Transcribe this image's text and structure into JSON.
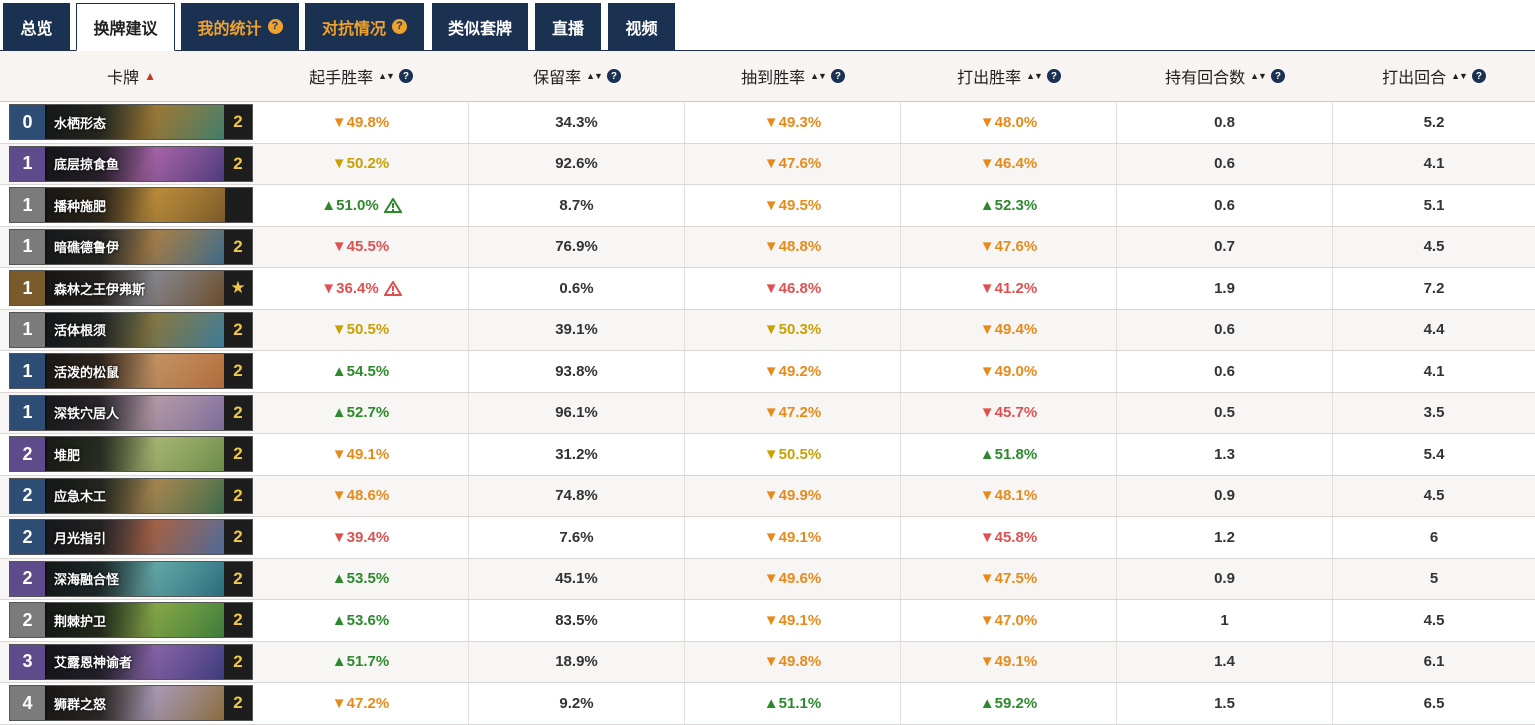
{
  "tabs": [
    {
      "label": "总览",
      "style": "normal",
      "help": false
    },
    {
      "label": "换牌建议",
      "style": "active",
      "help": false
    },
    {
      "label": "我的统计",
      "style": "gold",
      "help": true
    },
    {
      "label": "对抗情况",
      "style": "gold",
      "help": true
    },
    {
      "label": "类似套牌",
      "style": "normal",
      "help": false
    },
    {
      "label": "直播",
      "style": "normal",
      "help": false
    },
    {
      "label": "视频",
      "style": "normal",
      "help": false
    }
  ],
  "columns": [
    {
      "label": "卡牌",
      "sort": "▲"
    },
    {
      "label": "起手胜率",
      "sort": "▲▼"
    },
    {
      "label": "保留率",
      "sort": "▲▼"
    },
    {
      "label": "抽到胜率",
      "sort": "▲▼"
    },
    {
      "label": "打出胜率",
      "sort": "▲▼"
    },
    {
      "label": "持有回合数",
      "sort": "▲▼"
    },
    {
      "label": "打出回合",
      "sort": "▲▼"
    }
  ],
  "colors": {
    "orange": "#e88a1a",
    "yellow": "#c9a100",
    "red": "#e05050",
    "green": "#2c8a2c",
    "tab_bg": "#1b3152",
    "gold": "#f0a32c"
  },
  "rows": [
    {
      "cost": "0",
      "mana_color": "blue",
      "name": "水栖形态",
      "count": "2",
      "art": [
        "#3f7d6e",
        "#b58a3a"
      ],
      "mulligan": "▼49.8%",
      "mc": "orange",
      "kept": "34.3%",
      "drawn": "▼49.3%",
      "dc": "orange",
      "played": "▼48.0%",
      "pc": "orange",
      "turns_held": "0.8",
      "turn_played": "5.2"
    },
    {
      "cost": "1",
      "mana_color": "purple",
      "name": "底层掠食鱼",
      "count": "2",
      "art": [
        "#4a3a7a",
        "#c070c0"
      ],
      "mulligan": "▼50.2%",
      "mc": "yellow",
      "kept": "92.6%",
      "drawn": "▼47.6%",
      "dc": "orange",
      "played": "▼46.4%",
      "pc": "orange",
      "turns_held": "0.6",
      "turn_played": "4.1"
    },
    {
      "cost": "1",
      "mana_color": "gray",
      "name": "播种施肥",
      "count": "",
      "art": [
        "#7a5a2a",
        "#d8a040"
      ],
      "mulligan": "▲51.0%",
      "mc": "green",
      "warn": "green",
      "kept": "8.7%",
      "drawn": "▼49.5%",
      "dc": "orange",
      "played": "▲52.3%",
      "pc": "green",
      "turns_held": "0.6",
      "turn_played": "5.1"
    },
    {
      "cost": "1",
      "mana_color": "gray",
      "name": "暗礁德鲁伊",
      "count": "2",
      "art": [
        "#3a6a8a",
        "#c09050"
      ],
      "mulligan": "▼45.5%",
      "mc": "red",
      "kept": "76.9%",
      "drawn": "▼48.8%",
      "dc": "orange",
      "played": "▼47.6%",
      "pc": "orange",
      "turns_held": "0.7",
      "turn_played": "4.5"
    },
    {
      "cost": "1",
      "mana_color": "brown",
      "name": "森林之王伊弗斯",
      "count": "★",
      "art": [
        "#6a4a2a",
        "#9a9aa0"
      ],
      "mulligan": "▼36.4%",
      "mc": "red",
      "warn": "red",
      "kept": "0.6%",
      "drawn": "▼46.8%",
      "dc": "red",
      "played": "▼41.2%",
      "pc": "red",
      "turns_held": "1.9",
      "turn_played": "7.2"
    },
    {
      "cost": "1",
      "mana_color": "gray",
      "name": "活体根须",
      "count": "2",
      "art": [
        "#3a7a9a",
        "#9a8a4a"
      ],
      "mulligan": "▼50.5%",
      "mc": "yellow",
      "kept": "39.1%",
      "drawn": "▼50.3%",
      "dc": "yellow",
      "played": "▼49.4%",
      "pc": "orange",
      "turns_held": "0.6",
      "turn_played": "4.4"
    },
    {
      "cost": "1",
      "mana_color": "blue",
      "name": "活泼的松鼠",
      "count": "2",
      "art": [
        "#b06a3a",
        "#e0a870"
      ],
      "mulligan": "▲54.5%",
      "mc": "green",
      "kept": "93.8%",
      "drawn": "▼49.2%",
      "dc": "orange",
      "played": "▼49.0%",
      "pc": "orange",
      "turns_held": "0.6",
      "turn_played": "4.1"
    },
    {
      "cost": "1",
      "mana_color": "blue",
      "name": "深铁穴居人",
      "count": "2",
      "art": [
        "#7a6a9a",
        "#d0b0c0"
      ],
      "mulligan": "▲52.7%",
      "mc": "green",
      "kept": "96.1%",
      "drawn": "▼47.2%",
      "dc": "orange",
      "played": "▼45.7%",
      "pc": "red",
      "turns_held": "0.5",
      "turn_played": "3.5"
    },
    {
      "cost": "2",
      "mana_color": "purple",
      "name": "堆肥",
      "count": "2",
      "art": [
        "#6a8a4a",
        "#c0d080"
      ],
      "mulligan": "▼49.1%",
      "mc": "orange",
      "kept": "31.2%",
      "drawn": "▼50.5%",
      "dc": "yellow",
      "played": "▲51.8%",
      "pc": "green",
      "turns_held": "1.3",
      "turn_played": "5.4"
    },
    {
      "cost": "2",
      "mana_color": "blue",
      "name": "应急木工",
      "count": "2",
      "art": [
        "#3a6a4a",
        "#c09a5a"
      ],
      "mulligan": "▼48.6%",
      "mc": "orange",
      "kept": "74.8%",
      "drawn": "▼49.9%",
      "dc": "orange",
      "played": "▼48.1%",
      "pc": "orange",
      "turns_held": "0.9",
      "turn_played": "4.5"
    },
    {
      "cost": "2",
      "mana_color": "blue",
      "name": "月光指引",
      "count": "2",
      "art": [
        "#4a6a9a",
        "#c07050"
      ],
      "mulligan": "▼39.4%",
      "mc": "red",
      "kept": "7.6%",
      "drawn": "▼49.1%",
      "dc": "orange",
      "played": "▼45.8%",
      "pc": "red",
      "turns_held": "1.2",
      "turn_played": "6"
    },
    {
      "cost": "2",
      "mana_color": "purple",
      "name": "深海融合怪",
      "count": "2",
      "art": [
        "#2a6a7a",
        "#70c0c0"
      ],
      "mulligan": "▲53.5%",
      "mc": "green",
      "kept": "45.1%",
      "drawn": "▼49.6%",
      "dc": "orange",
      "played": "▼47.5%",
      "pc": "orange",
      "turns_held": "0.9",
      "turn_played": "5"
    },
    {
      "cost": "2",
      "mana_color": "gray",
      "name": "荆棘护卫",
      "count": "2",
      "art": [
        "#3a7a3a",
        "#9ac050"
      ],
      "mulligan": "▲53.6%",
      "mc": "green",
      "kept": "83.5%",
      "drawn": "▼49.1%",
      "dc": "orange",
      "played": "▼47.0%",
      "pc": "orange",
      "turns_held": "1",
      "turn_played": "4.5"
    },
    {
      "cost": "3",
      "mana_color": "purple",
      "name": "艾露恩神谕者",
      "count": "2",
      "art": [
        "#3a3a7a",
        "#9a70c0"
      ],
      "mulligan": "▲51.7%",
      "mc": "green",
      "kept": "18.9%",
      "drawn": "▼49.8%",
      "dc": "orange",
      "played": "▼49.1%",
      "pc": "orange",
      "turns_held": "1.4",
      "turn_played": "6.1"
    },
    {
      "cost": "4",
      "mana_color": "gray",
      "name": "狮群之怒",
      "count": "2",
      "art": [
        "#8a6a3a",
        "#c0b0d0"
      ],
      "mulligan": "▼47.2%",
      "mc": "orange",
      "kept": "9.2%",
      "drawn": "▲51.1%",
      "dc": "green",
      "played": "▲59.2%",
      "pc": "green",
      "turns_held": "1.5",
      "turn_played": "6.5"
    }
  ]
}
